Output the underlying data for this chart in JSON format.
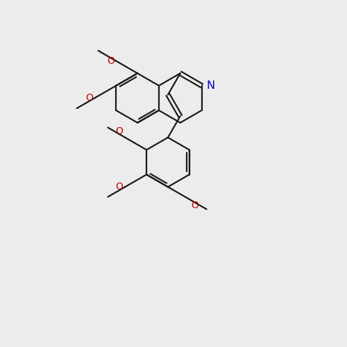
{
  "bg_color": "#ececec",
  "bond_color": "#1a1a1a",
  "n_color": "#0000cc",
  "o_color": "#cc0000",
  "bond_width": 1.6,
  "font_size": 10,
  "figsize": [
    5.0,
    5.0
  ],
  "dpi": 100,
  "xlim": [
    0,
    10
  ],
  "ylim": [
    0,
    10
  ]
}
